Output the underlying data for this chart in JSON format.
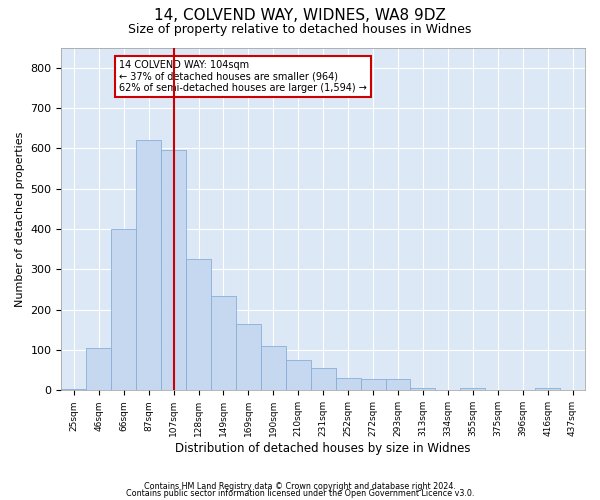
{
  "title1": "14, COLVEND WAY, WIDNES, WA8 9DZ",
  "title2": "Size of property relative to detached houses in Widnes",
  "xlabel": "Distribution of detached houses by size in Widnes",
  "ylabel": "Number of detached properties",
  "categories": [
    "25sqm",
    "46sqm",
    "66sqm",
    "87sqm",
    "107sqm",
    "128sqm",
    "149sqm",
    "169sqm",
    "190sqm",
    "210sqm",
    "231sqm",
    "252sqm",
    "272sqm",
    "293sqm",
    "313sqm",
    "334sqm",
    "355sqm",
    "375sqm",
    "396sqm",
    "416sqm",
    "437sqm"
  ],
  "values": [
    3,
    105,
    400,
    620,
    595,
    325,
    235,
    165,
    110,
    75,
    55,
    30,
    27,
    27,
    7,
    0,
    7,
    0,
    0,
    7,
    0
  ],
  "bar_color": "#c5d8f0",
  "bar_edge_color": "#88afd8",
  "vline_x": 4,
  "vline_color": "#cc0000",
  "annotation_text": "14 COLVEND WAY: 104sqm\n← 37% of detached houses are smaller (964)\n62% of semi-detached houses are larger (1,594) →",
  "annotation_box_color": "#ffffff",
  "annotation_border_color": "#cc0000",
  "plot_bg_color": "#dce8f5",
  "footer1": "Contains HM Land Registry data © Crown copyright and database right 2024.",
  "footer2": "Contains public sector information licensed under the Open Government Licence v3.0.",
  "ylim": [
    0,
    850
  ],
  "yticks": [
    0,
    100,
    200,
    300,
    400,
    500,
    600,
    700,
    800
  ]
}
